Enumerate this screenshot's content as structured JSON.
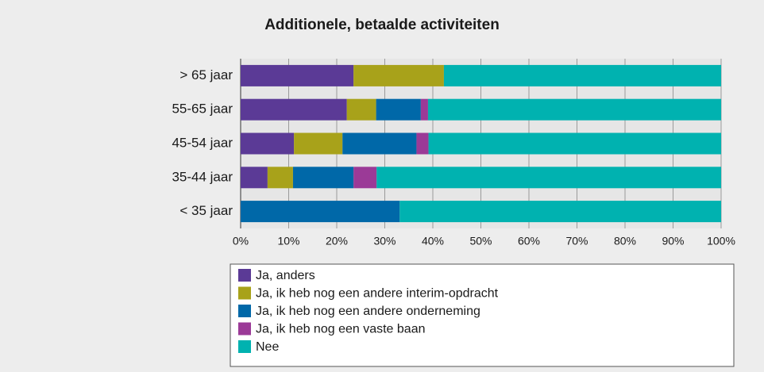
{
  "chart_data": {
    "type": "stacked_barh",
    "title": "Additionele, betaalde activiteiten",
    "categories": [
      "> 65 jaar",
      "55-65 jaar",
      "45-54 jaar",
      "35-44 jaar",
      "< 35 jaar"
    ],
    "series": [
      {
        "name": "Ja, anders",
        "color": "#5b3a96",
        "values": [
          23.5,
          22.1,
          11.1,
          5.6,
          0
        ]
      },
      {
        "name": "Ja, ik heb nog een andere interim-opdracht",
        "color": "#a8a21a",
        "values": [
          18.8,
          6.1,
          10.1,
          5.3,
          0
        ]
      },
      {
        "name": "Ja, ik heb nog een andere onderneming",
        "color": "#0068a8",
        "values": [
          0,
          9.3,
          15.4,
          12.6,
          33.1
        ]
      },
      {
        "name": "Ja, ik heb nog een vaste baan",
        "color": "#9b3a97",
        "values": [
          0,
          1.5,
          2.5,
          4.8,
          0
        ]
      },
      {
        "name": "Nee",
        "color": "#00b2b0",
        "values": [
          57.7,
          61.0,
          60.9,
          71.7,
          66.9
        ]
      }
    ],
    "xlim": [
      0,
      100
    ],
    "xticks": [
      {
        "value": 0,
        "label": "0%"
      },
      {
        "value": 10,
        "label": "10%"
      },
      {
        "value": 20,
        "label": "20%"
      },
      {
        "value": 30,
        "label": "30%"
      },
      {
        "value": 40,
        "label": "40%"
      },
      {
        "value": 50,
        "label": "50%"
      },
      {
        "value": 60,
        "label": "60%"
      },
      {
        "value": 70,
        "label": "70%"
      },
      {
        "value": 80,
        "label": "80%"
      },
      {
        "value": 90,
        "label": "90%"
      },
      {
        "value": 100,
        "label": "100%"
      }
    ],
    "grid": true
  }
}
